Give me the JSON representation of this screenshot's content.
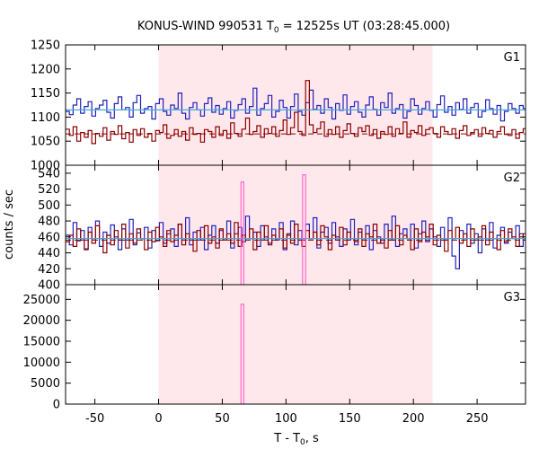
{
  "chart_data": {
    "type": "line",
    "title": {
      "prefix": "KONUS-WIND 990531 T",
      "sub": "0",
      "suffix": " = 12525s UT (03:28:45.000)"
    },
    "xlabel": {
      "prefix": "T - T",
      "sub": "0",
      "suffix": ", s"
    },
    "ylabel": "counts / sec",
    "xlim": [
      -73,
      288
    ],
    "xticks": [
      -50,
      0,
      50,
      100,
      150,
      200,
      250
    ],
    "highlight_interval": [
      0,
      215
    ],
    "colors": {
      "blue": "#2222bb",
      "red": "#8b0000",
      "cyan": "#44aadd",
      "pink": "#ff66cc",
      "shade": "#ffe8ec"
    },
    "panels": [
      {
        "name": "G1",
        "ylim": [
          1000,
          1250
        ],
        "yticks": [
          1000,
          1050,
          1100,
          1150,
          1200,
          1250
        ],
        "bin_width": 2.944,
        "start": -73,
        "blue_fit": 1115,
        "red_fit": 1065,
        "blue": [
          1112,
          1105,
          1125,
          1138,
          1108,
          1122,
          1132,
          1102,
          1118,
          1125,
          1135,
          1110,
          1098,
          1128,
          1142,
          1115,
          1120,
          1100,
          1130,
          1145,
          1108,
          1118,
          1122,
          1096,
          1128,
          1138,
          1112,
          1104,
          1125,
          1118,
          1150,
          1108,
          1096,
          1120,
          1130,
          1115,
          1102,
          1128,
          1140,
          1110,
          1124,
          1106,
          1118,
          1132,
          1098,
          1114,
          1126,
          1138,
          1108,
          1122,
          1160,
          1104,
          1118,
          1128,
          1145,
          1100,
          1112,
          1135,
          1120,
          1098,
          1122,
          1148,
          1112,
          1104,
          1130,
          1156,
          1116,
          1124,
          1108,
          1138,
          1120,
          1096,
          1128,
          1114,
          1146,
          1106,
          1122,
          1132,
          1110,
          1100,
          1125,
          1142,
          1116,
          1104,
          1130,
          1120,
          1150,
          1108,
          1118,
          1126,
          1098,
          1112,
          1138,
          1124,
          1106,
          1118,
          1132,
          1114,
          1100,
          1126,
          1144,
          1110,
          1122,
          1104,
          1130,
          1116,
          1138,
          1108,
          1120,
          1128,
          1100,
          1112,
          1136,
          1118,
          1106,
          1124,
          1092,
          1112,
          1128,
          1118,
          1108,
          1124,
          1118,
          1110,
          1126,
          1120
        ],
        "red": [
          1075,
          1062,
          1080,
          1050,
          1068,
          1058,
          1072,
          1045,
          1066,
          1060,
          1078,
          1052,
          1070,
          1064,
          1082,
          1055,
          1068,
          1048,
          1074,
          1062,
          1076,
          1058,
          1066,
          1050,
          1072,
          1068,
          1084,
          1056,
          1062,
          1074,
          1060,
          1070,
          1052,
          1078,
          1064,
          1066,
          1048,
          1074,
          1070,
          1058,
          1080,
          1062,
          1072,
          1056,
          1088,
          1066,
          1060,
          1075,
          1098,
          1064,
          1070,
          1082,
          1058,
          1076,
          1066,
          1080,
          1060,
          1072,
          1094,
          1064,
          1078,
          1110,
          1070,
          1062,
          1176,
          1084,
          1068,
          1076,
          1090,
          1060,
          1074,
          1064,
          1080,
          1058,
          1072,
          1086,
          1066,
          1060,
          1078,
          1070,
          1082,
          1062,
          1074,
          1056,
          1070,
          1064,
          1080,
          1060,
          1076,
          1066,
          1090,
          1058,
          1072,
          1068,
          1082,
          1062,
          1074,
          1078,
          1066,
          1058,
          1080,
          1070,
          1064,
          1076,
          1056,
          1072,
          1082,
          1062,
          1068,
          1074,
          1060,
          1078,
          1066,
          1072,
          1058,
          1070,
          1080,
          1064,
          1062,
          1074,
          1056,
          1068,
          1076,
          1062,
          1060,
          1070
        ]
      },
      {
        "name": "G2",
        "ylim": [
          400,
          550
        ],
        "yticks": [
          400,
          420,
          440,
          460,
          480,
          500,
          520,
          540
        ],
        "bin_width": 2.944,
        "start": -73,
        "blue_fit": 458,
        "red_fit": 456,
        "blue": [
          462,
          450,
          478,
          455,
          468,
          445,
          472,
          458,
          480,
          448,
          466,
          452,
          475,
          460,
          444,
          470,
          456,
          482,
          450,
          465,
          458,
          472,
          446,
          468,
          455,
          478,
          452,
          464,
          470,
          448,
          476,
          458,
          484,
          450,
          466,
          456,
          472,
          444,
          462,
          474,
          452,
          468,
          458,
          480,
          446,
          464,
          472,
          454,
          486,
          458,
          466,
          448,
          474,
          460,
          452,
          470,
          456,
          478,
          444,
          462,
          480,
          450,
          468,
          456,
          476,
          458,
          484,
          446,
          466,
          472,
          452,
          478,
          460,
          448,
          470,
          456,
          482,
          450,
          466,
          458,
          474,
          444,
          468,
          460,
          452,
          476,
          456,
          486,
          448,
          464,
          470,
          458,
          476,
          446,
          464,
          480,
          454,
          470,
          460,
          448,
          472,
          456,
          484,
          436,
          420,
          468,
          458,
          476,
          452,
          464,
          440,
          470,
          456,
          478,
          446,
          462,
          472,
          452,
          466,
          458,
          474,
          448,
          464,
          456,
          470,
          450,
          462,
          458,
          472
        ],
        "red": [
          454,
          462,
          448,
          470,
          456,
          444,
          466,
          452,
          474,
          458,
          440,
          462,
          450,
          468,
          456,
          476,
          446,
          464,
          452,
          470,
          458,
          444,
          466,
          454,
          472,
          460,
          448,
          468,
          454,
          462,
          476,
          450,
          464,
          456,
          442,
          468,
          458,
          474,
          452,
          460,
          446,
          470,
          456,
          464,
          452,
          478,
          448,
          462,
          458,
          470,
          444,
          466,
          456,
          474,
          450,
          462,
          458,
          470,
          446,
          464,
          452,
          476,
          456,
          448,
          468,
          458,
          466,
          450,
          474,
          460,
          444,
          462,
          456,
          472,
          450,
          466,
          458,
          454,
          470,
          448,
          464,
          460,
          476,
          452,
          458,
          446,
          468,
          456,
          474,
          450,
          462,
          458,
          444,
          470,
          454,
          466,
          460,
          476,
          450,
          462,
          456,
          442,
          468,
          458,
          472,
          452,
          464,
          448,
          470,
          456,
          460,
          474,
          450,
          466,
          458,
          444,
          468,
          454,
          470,
          460,
          448,
          464,
          456,
          472,
          450,
          466,
          458,
          462,
          452,
          468
        ],
        "spikes": [
          {
            "x0": 64.7,
            "x1": 66.9,
            "y": 529
          },
          {
            "x0": 113.0,
            "x1": 115.4,
            "y": 538
          }
        ]
      },
      {
        "name": "G3",
        "ylim": [
          0,
          28500
        ],
        "yticks": [
          0,
          5000,
          10000,
          15000,
          20000,
          25000
        ],
        "spikes": [
          {
            "x0": 64.7,
            "x1": 66.9,
            "y": 23800
          }
        ]
      }
    ]
  }
}
